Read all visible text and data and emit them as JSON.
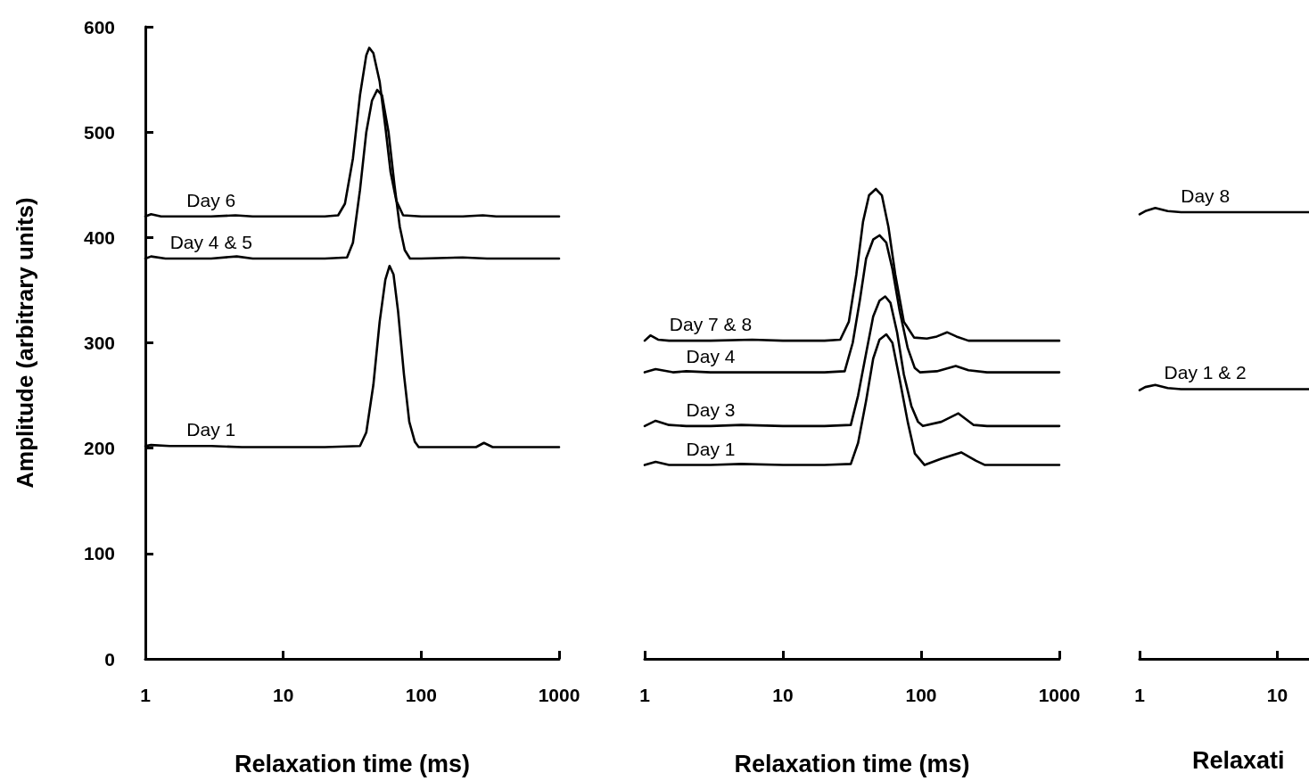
{
  "chart_data": [
    {
      "type": "line",
      "xlabel": "Relaxation time (ms)",
      "ylabel": "Amplitude (arbitrary units)",
      "log": "x",
      "xlim": [
        1,
        1000
      ],
      "xticks": [
        1,
        10,
        100,
        1000
      ],
      "ylim": [
        0,
        600
      ],
      "yticks": [
        0,
        100,
        200,
        300,
        400,
        500,
        600
      ],
      "marker": "none",
      "line_style": "solid",
      "series": [
        {
          "name": "Day 6",
          "color": "#000000",
          "x": [
            1,
            1.1,
            1.3,
            1.6,
            2,
            3,
            4.5,
            6,
            10,
            20,
            25,
            28,
            32,
            36,
            40,
            42,
            45,
            50,
            55,
            60,
            66,
            74,
            100,
            200,
            280,
            350,
            1000
          ],
          "values": [
            420,
            422,
            420,
            420,
            420,
            420,
            421,
            420,
            420,
            420,
            421,
            432,
            475,
            535,
            573,
            580,
            575,
            548,
            505,
            462,
            435,
            421,
            420,
            420,
            421,
            420,
            420
          ]
        },
        {
          "name": "Day 4 & 5",
          "color": "#000000",
          "x": [
            1,
            1.1,
            1.4,
            2,
            3,
            4.6,
            6,
            10,
            20,
            29,
            32,
            36,
            40,
            44,
            48,
            52,
            58,
            64,
            70,
            76,
            83,
            100,
            200,
            300,
            1000
          ],
          "values": [
            380,
            382,
            380,
            380,
            380,
            382,
            380,
            380,
            380,
            381,
            395,
            445,
            500,
            530,
            540,
            535,
            500,
            450,
            410,
            388,
            380,
            380,
            381,
            380,
            380
          ]
        },
        {
          "name": "Day 1",
          "color": "#000000",
          "x": [
            1,
            1.1,
            1.5,
            2,
            3,
            5,
            10,
            20,
            36,
            40,
            45,
            50,
            55,
            59,
            63,
            68,
            75,
            82,
            90,
            96,
            150,
            250,
            285,
            330,
            1000
          ],
          "values": [
            202,
            203,
            202,
            202,
            202,
            201,
            201,
            201,
            202,
            215,
            260,
            320,
            360,
            373,
            365,
            330,
            270,
            225,
            206,
            201,
            201,
            201,
            205,
            201,
            201
          ]
        }
      ]
    },
    {
      "type": "line",
      "xlabel": "Relaxation time (ms)",
      "log": "x",
      "xlim": [
        1,
        1000
      ],
      "xticks": [
        1,
        10,
        100,
        1000
      ],
      "ylim": [
        0,
        600
      ],
      "tick_labels": "x",
      "marker": "none",
      "line_style": "solid",
      "series": [
        {
          "name": "Day 7 & 8",
          "color": "#000000",
          "x": [
            1,
            1.1,
            1.25,
            1.5,
            2,
            3,
            6,
            10,
            20,
            26,
            30,
            34,
            38,
            42,
            47,
            52,
            58,
            65,
            75,
            89,
            110,
            130,
            154,
            180,
            220,
            300,
            1000
          ],
          "values": [
            302,
            307,
            303,
            302,
            302,
            302,
            303,
            302,
            302,
            303,
            320,
            365,
            415,
            440,
            446,
            440,
            410,
            365,
            320,
            305,
            304,
            306,
            310,
            306,
            302,
            302,
            302
          ]
        },
        {
          "name": "Day 4",
          "color": "#000000",
          "x": [
            1,
            1.2,
            1.6,
            2,
            3,
            5,
            10,
            20,
            28,
            32,
            36,
            40,
            45,
            50,
            56,
            62,
            70,
            80,
            90,
            98,
            130,
            178,
            220,
            300,
            1000
          ],
          "values": [
            272,
            275,
            272,
            273,
            272,
            272,
            272,
            272,
            273,
            300,
            340,
            380,
            398,
            402,
            395,
            370,
            330,
            295,
            276,
            272,
            273,
            278,
            274,
            272,
            272
          ]
        },
        {
          "name": "Day 3",
          "color": "#000000",
          "x": [
            1,
            1.2,
            1.5,
            2,
            3,
            5,
            10,
            20,
            31,
            35,
            40,
            45,
            50,
            55,
            60,
            67,
            75,
            85,
            95,
            103,
            140,
            186,
            240,
            300,
            1000
          ],
          "values": [
            221,
            226,
            222,
            221,
            221,
            222,
            221,
            221,
            222,
            250,
            290,
            325,
            340,
            344,
            338,
            310,
            270,
            240,
            225,
            221,
            225,
            233,
            222,
            221,
            221
          ]
        },
        {
          "name": "Day 1",
          "color": "#000000",
          "x": [
            1,
            1.2,
            1.5,
            2,
            3,
            5,
            10,
            20,
            31,
            35,
            40,
            45,
            50,
            56,
            62,
            70,
            80,
            90,
            106,
            140,
            195,
            250,
            290,
            1000
          ],
          "values": [
            184,
            187,
            184,
            184,
            184,
            185,
            184,
            184,
            185,
            205,
            245,
            285,
            303,
            308,
            300,
            265,
            225,
            195,
            184,
            190,
            196,
            188,
            184,
            184
          ]
        }
      ]
    },
    {
      "type": "line",
      "xlabel": "Relaxati",
      "log": "x",
      "xlim": [
        1,
        17
      ],
      "xticks": [
        1,
        10
      ],
      "ylim": [
        0,
        600
      ],
      "tick_labels": "x",
      "marker": "none",
      "line_style": "solid",
      "series": [
        {
          "name": "Day 8",
          "color": "#000000",
          "x": [
            1,
            1.1,
            1.3,
            1.6,
            2,
            3,
            5,
            10,
            17
          ],
          "values": [
            422,
            425,
            428,
            425,
            424,
            424,
            424,
            424,
            424
          ]
        },
        {
          "name": "Day 1 & 2",
          "color": "#000000",
          "x": [
            1,
            1.1,
            1.3,
            1.6,
            2,
            3,
            5,
            10,
            17
          ],
          "values": [
            255,
            258,
            260,
            257,
            256,
            256,
            256,
            256,
            256
          ]
        }
      ]
    }
  ]
}
